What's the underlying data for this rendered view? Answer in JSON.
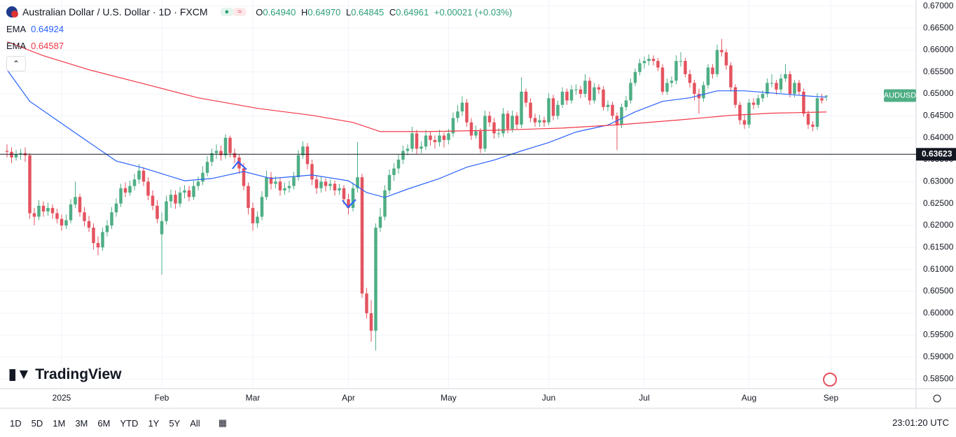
{
  "header": {
    "title": "Australian Dollar / U.S. Dollar · 1D · FXCM",
    "ohlc": [
      {
        "key": "O",
        "value": "0.64940"
      },
      {
        "key": "H",
        "value": "0.64970"
      },
      {
        "key": "L",
        "value": "0.64845"
      },
      {
        "key": "C",
        "value": "0.64961"
      }
    ],
    "change": "+0.00021 (+0.03%)"
  },
  "toolbar": {
    "ranges": [
      "1D",
      "5D",
      "1M",
      "3M",
      "6M",
      "YTD",
      "1Y",
      "5Y",
      "All"
    ],
    "clock": "23:01:20 UTC",
    "logo": "TradingView"
  },
  "chart_data": {
    "type": "candlestick",
    "up_color": "#4fae85",
    "down_color": "#e4535f",
    "grid": true,
    "xlim": [
      -1.54,
      199.7
    ],
    "ylim": [
      0.5828,
      0.6714
    ],
    "xticks": [
      {
        "value": 12,
        "label": "2025"
      },
      {
        "value": 34,
        "label": "Feb"
      },
      {
        "value": 54,
        "label": "Mar"
      },
      {
        "value": 75,
        "label": "Apr"
      },
      {
        "value": 97,
        "label": "May"
      },
      {
        "value": 119,
        "label": "Jun"
      },
      {
        "value": 140,
        "label": "Jul"
      },
      {
        "value": 163,
        "label": "Aug"
      },
      {
        "value": 181,
        "label": "Sep"
      }
    ],
    "yticks": [
      {
        "value": 0.585,
        "label": "0.58500"
      },
      {
        "value": 0.59,
        "label": "0.59000"
      },
      {
        "value": 0.595,
        "label": "0.59500"
      },
      {
        "value": 0.6,
        "label": "0.60000"
      },
      {
        "value": 0.605,
        "label": "0.60500"
      },
      {
        "value": 0.61,
        "label": "0.61000"
      },
      {
        "value": 0.615,
        "label": "0.61500"
      },
      {
        "value": 0.62,
        "label": "0.62000"
      },
      {
        "value": 0.625,
        "label": "0.62500"
      },
      {
        "value": 0.63,
        "label": "0.63000"
      },
      {
        "value": 0.635,
        "label": "0.63500"
      },
      {
        "value": 0.64,
        "label": "0.64000"
      },
      {
        "value": 0.645,
        "label": "0.64500"
      },
      {
        "value": 0.65,
        "label": "0.65000"
      },
      {
        "value": 0.655,
        "label": "0.65500"
      },
      {
        "value": 0.66,
        "label": "0.66000"
      },
      {
        "value": 0.665,
        "label": "0.66500"
      },
      {
        "value": 0.67,
        "label": "0.67000"
      }
    ],
    "hline": {
      "value": 0.63623,
      "label": "0.63623"
    },
    "badge": "AUDUSD",
    "badge_color": "#4fae85",
    "ema": [
      {
        "name": "EMA",
        "value_label": "0.64924",
        "color": "#2962ff",
        "x": [
          0,
          5,
          15,
          24,
          30,
          39,
          45,
          52,
          58,
          67,
          75,
          79,
          83,
          88,
          95,
          101,
          107,
          113,
          119,
          125,
          132,
          138,
          144,
          150,
          156,
          162,
          168,
          175,
          180
        ],
        "values": [
          0.6555,
          0.6483,
          0.6411,
          0.6347,
          0.6331,
          0.6302,
          0.6307,
          0.6323,
          0.6307,
          0.6315,
          0.6302,
          0.6275,
          0.6264,
          0.6283,
          0.6307,
          0.6333,
          0.6349,
          0.637,
          0.6389,
          0.6413,
          0.6429,
          0.6459,
          0.6483,
          0.6491,
          0.6507,
          0.6507,
          0.6502,
          0.6496,
          0.64924
        ]
      },
      {
        "name": "EMA",
        "value_label": "0.64587",
        "color": "#f23645",
        "x": [
          0,
          8,
          18,
          30,
          42,
          55,
          67,
          76,
          82,
          92,
          107,
          122,
          135,
          147,
          159,
          168,
          180
        ],
        "values": [
          0.6619,
          0.6587,
          0.6555,
          0.6523,
          0.6491,
          0.6467,
          0.6451,
          0.6435,
          0.6414,
          0.6414,
          0.6417,
          0.6422,
          0.643,
          0.644,
          0.6451,
          0.6456,
          0.64587
        ]
      }
    ],
    "candles": [
      [
        0.637,
        0.6385,
        0.6355,
        0.6368
      ],
      [
        0.6368,
        0.6378,
        0.6342,
        0.6355
      ],
      [
        0.6355,
        0.6372,
        0.6348,
        0.6362
      ],
      [
        0.6362,
        0.6375,
        0.635,
        0.6365
      ],
      [
        0.6365,
        0.6378,
        0.6345,
        0.636
      ],
      [
        0.636,
        0.6365,
        0.6215,
        0.6228
      ],
      [
        0.6228,
        0.624,
        0.62,
        0.622
      ],
      [
        0.622,
        0.6258,
        0.6212,
        0.6245
      ],
      [
        0.6245,
        0.6255,
        0.622,
        0.6232
      ],
      [
        0.6232,
        0.6252,
        0.6222,
        0.624
      ],
      [
        0.624,
        0.6248,
        0.6215,
        0.6228
      ],
      [
        0.6228,
        0.6238,
        0.6205,
        0.6215
      ],
      [
        0.6215,
        0.6225,
        0.6188,
        0.62
      ],
      [
        0.62,
        0.6225,
        0.6192,
        0.6212
      ],
      [
        0.6212,
        0.626,
        0.6205,
        0.6248
      ],
      [
        0.6248,
        0.63,
        0.624,
        0.6265
      ],
      [
        0.6265,
        0.6272,
        0.622,
        0.623
      ],
      [
        0.623,
        0.6242,
        0.6198,
        0.621
      ],
      [
        0.621,
        0.6222,
        0.6185,
        0.6195
      ],
      [
        0.6195,
        0.6205,
        0.6145,
        0.616
      ],
      [
        0.616,
        0.6175,
        0.6132,
        0.615
      ],
      [
        0.615,
        0.6195,
        0.6142,
        0.6185
      ],
      [
        0.6185,
        0.6212,
        0.6175,
        0.62
      ],
      [
        0.62,
        0.6242,
        0.6192,
        0.623
      ],
      [
        0.623,
        0.6262,
        0.622,
        0.625
      ],
      [
        0.625,
        0.6295,
        0.6242,
        0.6285
      ],
      [
        0.6285,
        0.6298,
        0.6265,
        0.6275
      ],
      [
        0.6275,
        0.6302,
        0.6268,
        0.629
      ],
      [
        0.629,
        0.6318,
        0.628,
        0.6305
      ],
      [
        0.6305,
        0.634,
        0.6295,
        0.6325
      ],
      [
        0.6325,
        0.6332,
        0.629,
        0.63
      ],
      [
        0.63,
        0.631,
        0.6258,
        0.6268
      ],
      [
        0.6268,
        0.628,
        0.6235,
        0.6245
      ],
      [
        0.6245,
        0.6258,
        0.6205,
        0.6215
      ],
      [
        0.618,
        0.623,
        0.6088,
        0.621
      ],
      [
        0.621,
        0.6268,
        0.6202,
        0.6255
      ],
      [
        0.6255,
        0.6282,
        0.624,
        0.627
      ],
      [
        0.627,
        0.628,
        0.6238,
        0.625
      ],
      [
        0.625,
        0.6288,
        0.6242,
        0.6275
      ],
      [
        0.6275,
        0.6292,
        0.6262,
        0.628
      ],
      [
        0.628,
        0.629,
        0.6255,
        0.6265
      ],
      [
        0.6265,
        0.6302,
        0.6258,
        0.629
      ],
      [
        0.629,
        0.6312,
        0.628,
        0.63
      ],
      [
        0.63,
        0.6335,
        0.6292,
        0.632
      ],
      [
        0.632,
        0.6358,
        0.6312,
        0.6345
      ],
      [
        0.6345,
        0.6375,
        0.6335,
        0.6365
      ],
      [
        0.6365,
        0.6385,
        0.6352,
        0.637
      ],
      [
        0.637,
        0.6382,
        0.6348,
        0.636
      ],
      [
        0.636,
        0.6408,
        0.6352,
        0.64
      ],
      [
        0.64,
        0.6405,
        0.6355,
        0.6365
      ],
      [
        0.6365,
        0.6375,
        0.6342,
        0.6355
      ],
      [
        0.6355,
        0.6362,
        0.6318,
        0.633
      ],
      [
        0.633,
        0.6342,
        0.628,
        0.629
      ],
      [
        0.629,
        0.6298,
        0.6225,
        0.624
      ],
      [
        0.624,
        0.6252,
        0.6188,
        0.6205
      ],
      [
        0.6205,
        0.6232,
        0.6195,
        0.622
      ],
      [
        0.622,
        0.6278,
        0.6212,
        0.6265
      ],
      [
        0.6265,
        0.6325,
        0.6258,
        0.631
      ],
      [
        0.631,
        0.6322,
        0.6282,
        0.6295
      ],
      [
        0.6295,
        0.6312,
        0.6285,
        0.63
      ],
      [
        0.63,
        0.6308,
        0.6268,
        0.628
      ],
      [
        0.628,
        0.6298,
        0.627,
        0.6285
      ],
      [
        0.6285,
        0.6302,
        0.6275,
        0.629
      ],
      [
        0.629,
        0.6322,
        0.6282,
        0.631
      ],
      [
        0.631,
        0.6372,
        0.6302,
        0.636
      ],
      [
        0.636,
        0.6392,
        0.6352,
        0.638
      ],
      [
        0.638,
        0.6388,
        0.6328,
        0.634
      ],
      [
        0.634,
        0.635,
        0.6292,
        0.6305
      ],
      [
        0.6305,
        0.6315,
        0.6272,
        0.6285
      ],
      [
        0.6285,
        0.6312,
        0.6275,
        0.63
      ],
      [
        0.63,
        0.6308,
        0.6278,
        0.629
      ],
      [
        0.629,
        0.6305,
        0.628,
        0.6295
      ],
      [
        0.6295,
        0.6302,
        0.6268,
        0.628
      ],
      [
        0.628,
        0.6295,
        0.627,
        0.6285
      ],
      [
        0.6285,
        0.6292,
        0.6248,
        0.626
      ],
      [
        0.626,
        0.6272,
        0.6225,
        0.624
      ],
      [
        0.624,
        0.6298,
        0.6232,
        0.6285
      ],
      [
        0.6285,
        0.639,
        0.6275,
        0.631
      ],
      [
        0.631,
        0.6318,
        0.6035,
        0.6045
      ],
      [
        0.6045,
        0.6058,
        0.5988,
        0.6
      ],
      [
        0.6,
        0.603,
        0.5935,
        0.596
      ],
      [
        0.596,
        0.6205,
        0.5915,
        0.6195
      ],
      [
        0.6195,
        0.624,
        0.6185,
        0.622
      ],
      [
        0.622,
        0.6292,
        0.6212,
        0.628
      ],
      [
        0.628,
        0.6328,
        0.6272,
        0.6315
      ],
      [
        0.6315,
        0.6342,
        0.6302,
        0.633
      ],
      [
        0.633,
        0.6362,
        0.6318,
        0.635
      ],
      [
        0.635,
        0.6382,
        0.634,
        0.637
      ],
      [
        0.637,
        0.6385,
        0.636,
        0.6375
      ],
      [
        0.6375,
        0.6425,
        0.6368,
        0.641
      ],
      [
        0.641,
        0.6418,
        0.6362,
        0.6375
      ],
      [
        0.6375,
        0.6392,
        0.6365,
        0.638
      ],
      [
        0.638,
        0.6418,
        0.6372,
        0.6405
      ],
      [
        0.6405,
        0.6415,
        0.6382,
        0.6395
      ],
      [
        0.6395,
        0.6405,
        0.6375,
        0.639
      ],
      [
        0.639,
        0.6418,
        0.638,
        0.6405
      ],
      [
        0.6405,
        0.6412,
        0.6378,
        0.6395
      ],
      [
        0.6395,
        0.642,
        0.6385,
        0.641
      ],
      [
        0.641,
        0.6458,
        0.6402,
        0.6445
      ],
      [
        0.6445,
        0.6475,
        0.6435,
        0.646
      ],
      [
        0.646,
        0.6495,
        0.645,
        0.648
      ],
      [
        0.648,
        0.6488,
        0.6425,
        0.6435
      ],
      [
        0.6435,
        0.6445,
        0.6395,
        0.6405
      ],
      [
        0.6405,
        0.6428,
        0.6398,
        0.6415
      ],
      [
        0.6415,
        0.6422,
        0.6365,
        0.6375
      ],
      [
        0.6375,
        0.6462,
        0.6368,
        0.645
      ],
      [
        0.645,
        0.646,
        0.6425,
        0.6435
      ],
      [
        0.6435,
        0.6445,
        0.6398,
        0.641
      ],
      [
        0.641,
        0.6422,
        0.64,
        0.641
      ],
      [
        0.641,
        0.6468,
        0.6402,
        0.6455
      ],
      [
        0.6455,
        0.6462,
        0.641,
        0.642
      ],
      [
        0.642,
        0.6462,
        0.6412,
        0.645
      ],
      [
        0.645,
        0.6458,
        0.642,
        0.643
      ],
      [
        0.643,
        0.6538,
        0.6422,
        0.6505
      ],
      [
        0.6505,
        0.6512,
        0.647,
        0.648
      ],
      [
        0.648,
        0.649,
        0.6435,
        0.6445
      ],
      [
        0.6445,
        0.6455,
        0.6425,
        0.6435
      ],
      [
        0.6435,
        0.6452,
        0.6425,
        0.644
      ],
      [
        0.644,
        0.6448,
        0.6425,
        0.6435
      ],
      [
        0.6435,
        0.6502,
        0.6428,
        0.649
      ],
      [
        0.649,
        0.6498,
        0.644,
        0.645
      ],
      [
        0.645,
        0.6485,
        0.6442,
        0.6475
      ],
      [
        0.6475,
        0.6515,
        0.6468,
        0.6505
      ],
      [
        0.6505,
        0.6512,
        0.6475,
        0.6485
      ],
      [
        0.6485,
        0.652,
        0.6478,
        0.651
      ],
      [
        0.651,
        0.6522,
        0.6498,
        0.651
      ],
      [
        0.651,
        0.6518,
        0.649,
        0.65
      ],
      [
        0.65,
        0.6545,
        0.6492,
        0.653
      ],
      [
        0.653,
        0.6538,
        0.6475,
        0.6485
      ],
      [
        0.6485,
        0.6525,
        0.6478,
        0.6515
      ],
      [
        0.6515,
        0.6522,
        0.65,
        0.651
      ],
      [
        0.651,
        0.6518,
        0.6462,
        0.647
      ],
      [
        0.647,
        0.6485,
        0.646,
        0.6475
      ],
      [
        0.6475,
        0.6482,
        0.6442,
        0.645
      ],
      [
        0.645,
        0.6458,
        0.6372,
        0.643
      ],
      [
        0.643,
        0.6478,
        0.6422,
        0.647
      ],
      [
        0.647,
        0.6495,
        0.6462,
        0.6485
      ],
      [
        0.6485,
        0.6535,
        0.6478,
        0.6525
      ],
      [
        0.6525,
        0.6558,
        0.6518,
        0.655
      ],
      [
        0.655,
        0.658,
        0.6542,
        0.657
      ],
      [
        0.657,
        0.6585,
        0.6558,
        0.6575
      ],
      [
        0.6575,
        0.659,
        0.6565,
        0.658
      ],
      [
        0.658,
        0.6588,
        0.6565,
        0.6575
      ],
      [
        0.6575,
        0.6582,
        0.6552,
        0.656
      ],
      [
        0.656,
        0.6568,
        0.6498,
        0.6505
      ],
      [
        0.6505,
        0.6535,
        0.6498,
        0.6525
      ],
      [
        0.6525,
        0.654,
        0.6515,
        0.653
      ],
      [
        0.653,
        0.6588,
        0.6522,
        0.6575
      ],
      [
        0.6575,
        0.6595,
        0.6562,
        0.6575
      ],
      [
        0.6575,
        0.6582,
        0.6538,
        0.6545
      ],
      [
        0.6545,
        0.6555,
        0.6515,
        0.6525
      ],
      [
        0.6525,
        0.6532,
        0.6485,
        0.65
      ],
      [
        0.65,
        0.6512,
        0.6455,
        0.649
      ],
      [
        0.649,
        0.6528,
        0.6482,
        0.652
      ],
      [
        0.652,
        0.6568,
        0.6512,
        0.656
      ],
      [
        0.656,
        0.6568,
        0.6535,
        0.6545
      ],
      [
        0.6545,
        0.6612,
        0.6538,
        0.66
      ],
      [
        0.66,
        0.6625,
        0.6585,
        0.6595
      ],
      [
        0.6595,
        0.6602,
        0.6555,
        0.6565
      ],
      [
        0.6565,
        0.6572,
        0.6505,
        0.6515
      ],
      [
        0.6515,
        0.6522,
        0.6468,
        0.6475
      ],
      [
        0.6475,
        0.6482,
        0.643,
        0.644
      ],
      [
        0.644,
        0.6452,
        0.642,
        0.643
      ],
      [
        0.643,
        0.6488,
        0.6422,
        0.648
      ],
      [
        0.648,
        0.649,
        0.6465,
        0.6475
      ],
      [
        0.6475,
        0.6498,
        0.6468,
        0.649
      ],
      [
        0.649,
        0.6508,
        0.6482,
        0.65
      ],
      [
        0.65,
        0.6535,
        0.6492,
        0.6525
      ],
      [
        0.6525,
        0.6545,
        0.6515,
        0.6525
      ],
      [
        0.6525,
        0.6532,
        0.6498,
        0.651
      ],
      [
        0.651,
        0.6545,
        0.6502,
        0.6535
      ],
      [
        0.6535,
        0.6568,
        0.6528,
        0.6545
      ],
      [
        0.6545,
        0.6552,
        0.6492,
        0.65
      ],
      [
        0.65,
        0.6532,
        0.6492,
        0.6525
      ],
      [
        0.6525,
        0.6532,
        0.6498,
        0.6505
      ],
      [
        0.6505,
        0.6512,
        0.6448,
        0.6455
      ],
      [
        0.6455,
        0.6462,
        0.642,
        0.643
      ],
      [
        0.643,
        0.6438,
        0.6415,
        0.6425
      ],
      [
        0.6425,
        0.6502,
        0.6418,
        0.649
      ],
      [
        0.649,
        0.65,
        0.6478,
        0.6485
      ],
      [
        0.6494,
        0.6497,
        0.64845,
        0.64961
      ]
    ]
  }
}
